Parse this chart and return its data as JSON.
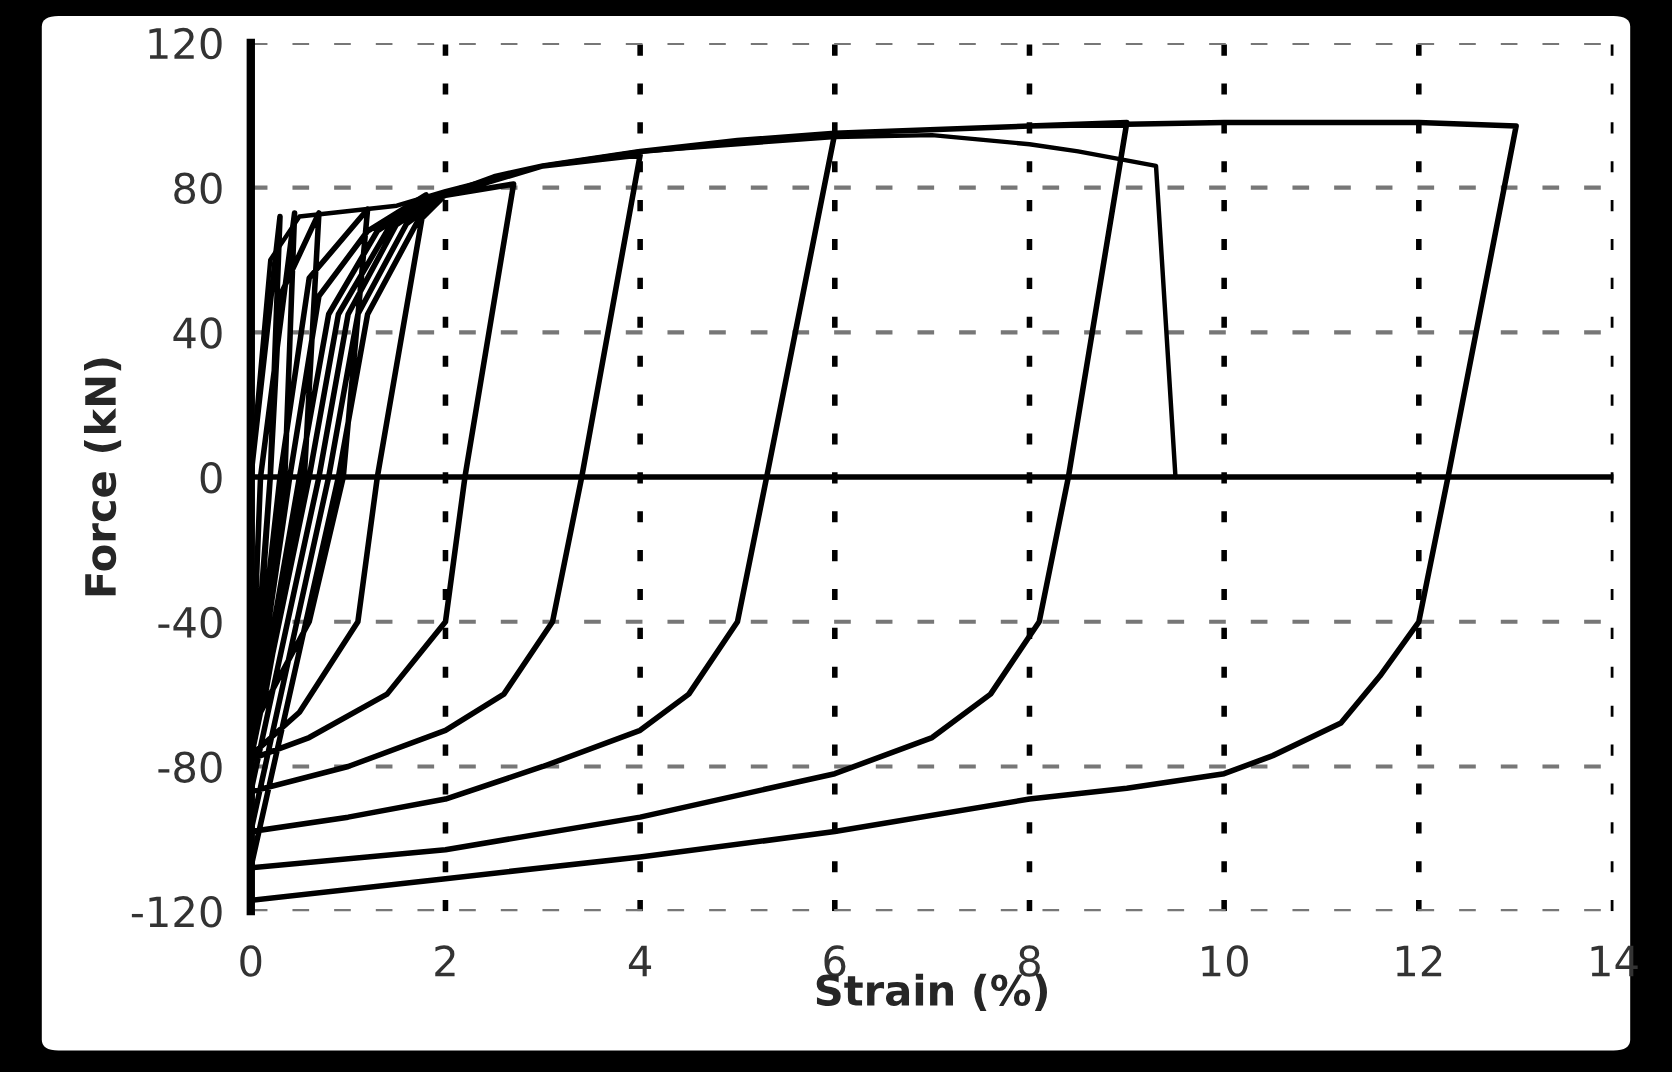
{
  "chart_data": {
    "type": "line",
    "xlabel": "Strain (%)",
    "ylabel": "Force (kN)",
    "xlim": [
      0,
      14
    ],
    "xticks": [
      0,
      2,
      4,
      6,
      8,
      10,
      12,
      14
    ],
    "ylim": [
      -120,
      120
    ],
    "yticks": [
      -120,
      -80,
      -40,
      0,
      40,
      80,
      120
    ],
    "grid": true,
    "marker": "none",
    "line_style": "solid",
    "ref_lines": [
      {
        "axis": "y",
        "value": 0,
        "color": "#000000"
      }
    ],
    "series": [
      {
        "color": "#000000",
        "x": [
          0,
          0.3,
          0.2,
          0.05,
          0,
          0.1,
          0.45,
          0.35,
          0.1,
          0,
          0.2,
          0.3,
          0.7,
          0.55,
          0.15,
          0,
          0.3,
          0.6,
          1.2,
          0.95,
          0.6,
          0.1,
          0,
          0.4,
          0.7,
          1.2,
          1.8,
          1.3,
          1.1,
          0.5,
          0,
          0.5,
          0.8,
          1.3,
          1.8,
          2.7,
          2.2,
          2.0,
          1.4,
          0.6,
          0,
          0.6,
          0.9,
          1.4,
          1.9,
          2.5,
          3,
          4,
          3.4,
          3.1,
          2.6,
          2,
          1,
          0,
          0.7,
          1,
          1.5,
          2,
          3,
          4,
          5,
          6,
          5.3,
          5.0,
          4.5,
          4,
          3,
          2,
          1,
          0,
          0.8,
          1.1,
          1.6,
          2,
          3,
          4,
          6,
          8,
          9,
          8.4,
          8.1,
          7.6,
          7,
          6,
          4,
          2,
          0,
          0.9,
          1.2,
          1.7,
          2,
          3,
          4,
          6,
          8,
          10,
          12,
          13,
          12.3,
          12.0,
          11.6,
          11.2,
          10.5,
          10,
          9,
          8,
          6,
          4,
          2,
          0
        ],
        "values": [
          0,
          72,
          0,
          -60,
          -68,
          0,
          73,
          0,
          -60,
          -70,
          0,
          50,
          73,
          0,
          -60,
          -72,
          0,
          55,
          74,
          0,
          -40,
          -65,
          -74,
          0,
          50,
          68,
          78,
          0,
          -40,
          -65,
          -77,
          0,
          45,
          68,
          77,
          81,
          0,
          -40,
          -60,
          -72,
          -78,
          0,
          45,
          68,
          77,
          83,
          86,
          89,
          0,
          -40,
          -60,
          -70,
          -80,
          -87,
          0,
          45,
          70,
          78,
          86,
          90,
          93,
          95,
          0,
          -40,
          -60,
          -70,
          -80,
          -89,
          -94,
          -98,
          0,
          45,
          70,
          78,
          86,
          90,
          95,
          97,
          98,
          0,
          -40,
          -60,
          -72,
          -82,
          -94,
          -103,
          -108,
          0,
          45,
          70,
          78,
          86,
          90,
          95,
          97,
          98,
          98,
          97,
          0,
          -40,
          -55,
          -68,
          -77,
          -82,
          -86,
          -89,
          -98,
          -105,
          -111,
          -117
        ]
      },
      {
        "color": "#000000",
        "x": [
          0,
          0.2,
          0.5,
          1.5,
          2,
          3,
          4,
          5,
          6,
          7,
          8,
          8.5,
          9.3,
          9.5
        ],
        "values": [
          0,
          60,
          72,
          75,
          79,
          86,
          90,
          92,
          94,
          94.5,
          92,
          90,
          86,
          0
        ]
      }
    ]
  }
}
